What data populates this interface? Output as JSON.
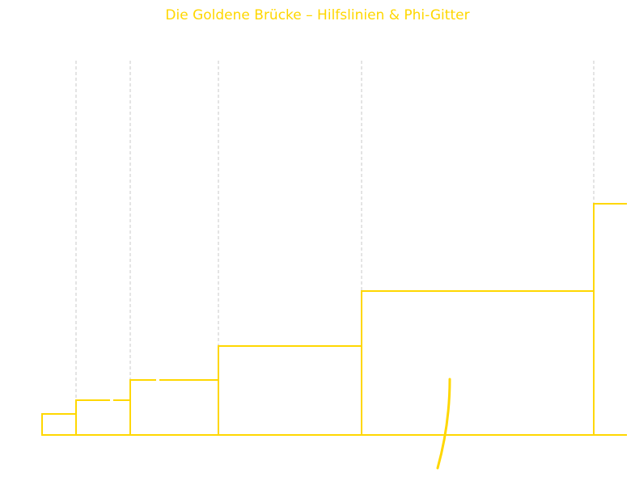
{
  "title": "Die Goldene Brücke – Hilfslinien & Phi-Gitter",
  "colors": {
    "accent": "#ffd700",
    "guide": "#c8c8c8",
    "background": "#ffffff"
  }
}
